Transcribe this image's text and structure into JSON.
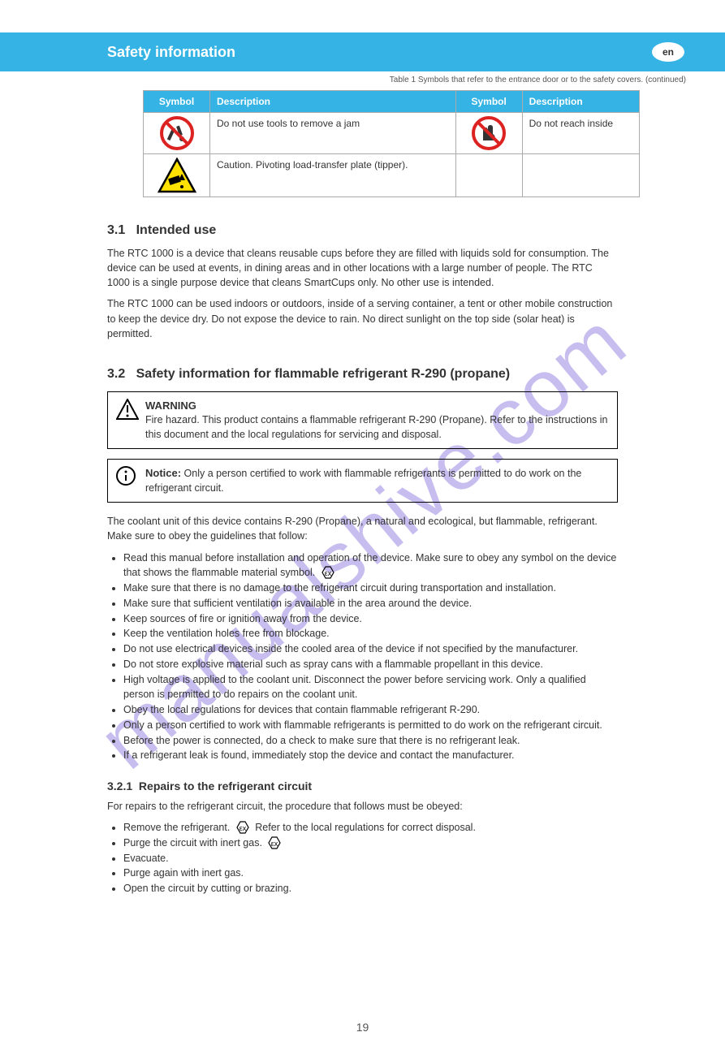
{
  "header": {
    "title": "Safety information",
    "lang": "en"
  },
  "mini_toc": "Table 1 Symbols that refer to the entrance door or to the safety covers. (continued)",
  "table": {
    "headers": [
      "Symbol",
      "Description",
      "Symbol",
      "Description"
    ],
    "rows": [
      {
        "c1": "Do not use tools to remove a jam",
        "c2": "Do not reach inside",
        "icon1": "prohibit-tool",
        "icon2": "prohibit-hand"
      },
      {
        "c1": "Caution. Pivoting load-transfer plate (tipper).",
        "c2": "",
        "icon1": "warn-pivot",
        "icon2": ""
      }
    ]
  },
  "sec31": {
    "num": "3.1",
    "title": "Intended use",
    "p1": "The RTC 1000 is a device that cleans reusable cups before they are filled with liquids sold for consumption. The device can be used at events, in dining areas and in other locations with a large number of people. The RTC 1000 is a single purpose device that cleans SmartCups only. No other use is intended.",
    "p2": "The RTC 1000 can be used indoors or outdoors, inside of a serving container, a tent or other mobile construction to keep the device dry. Do not expose the device to rain. No direct sunlight on the top side (solar heat) is permitted."
  },
  "sec32": {
    "num": "3.2",
    "title": "Safety information for flammable refrigerant R-290 (propane)"
  },
  "warn": {
    "label": "WARNING",
    "text": "Fire hazard. This product contains a flammable refrigerant R-290 (Propane). Refer to the instructions in this document and the local regulations for servicing and disposal."
  },
  "notice": {
    "label": "Notice:",
    "text": "Only a person certified to work with flammable refrigerants is permitted to do work on the refrigerant circuit."
  },
  "post_notice": "The coolant unit of this device contains R-290 (Propane), a natural and ecological, but flammable, refrigerant. Make sure to obey the guidelines that follow:",
  "bullets1": [
    {
      "t": "Read this manual before installation and operation of the device. Make sure to obey any symbol on the device that shows the flammable material symbol.",
      "ex": true
    },
    {
      "t": "Make sure that there is no damage to the refrigerant circuit during transportation and installation."
    },
    {
      "t": "Make sure that sufficient ventilation is available in the area around the device."
    },
    {
      "t": "Keep sources of fire or ignition away from the device."
    },
    {
      "t": "Keep the ventilation holes free from blockage."
    },
    {
      "t": "Do not use electrical devices inside the cooled area of the device if not specified by the manufacturer."
    },
    {
      "t": "Do not store explosive material such as spray cans with a flammable propellant in this device."
    },
    {
      "t": "High voltage is applied to the coolant unit. Disconnect the power before servicing work. Only a qualified person is permitted to do repairs on the coolant unit."
    },
    {
      "t": "Obey the local regulations for devices that contain flammable refrigerant R-290."
    },
    {
      "t": "Only a person certified to work with flammable refrigerants is permitted to do work on the refrigerant circuit."
    },
    {
      "t": "Before the power is connected, do a check to make sure that there is no refrigerant leak."
    },
    {
      "t": "If a refrigerant leak is found, immediately stop the device and contact the manufacturer."
    }
  ],
  "sub321": {
    "num": "3.2.1",
    "title": "Repairs to the refrigerant circuit",
    "lead": "For repairs to the refrigerant circuit, the procedure that follows must be obeyed:"
  },
  "bullets2": [
    {
      "t": "Remove the refrigerant.     Refer to the local regulations for correct disposal.",
      "ex": true
    },
    {
      "t": "Purge the circuit with inert gas.",
      "ex": true
    },
    {
      "t": "Evacuate."
    },
    {
      "t": "Purge again with inert gas."
    },
    {
      "t": "Open the circuit by cutting or brazing."
    }
  ],
  "page_number": "19"
}
